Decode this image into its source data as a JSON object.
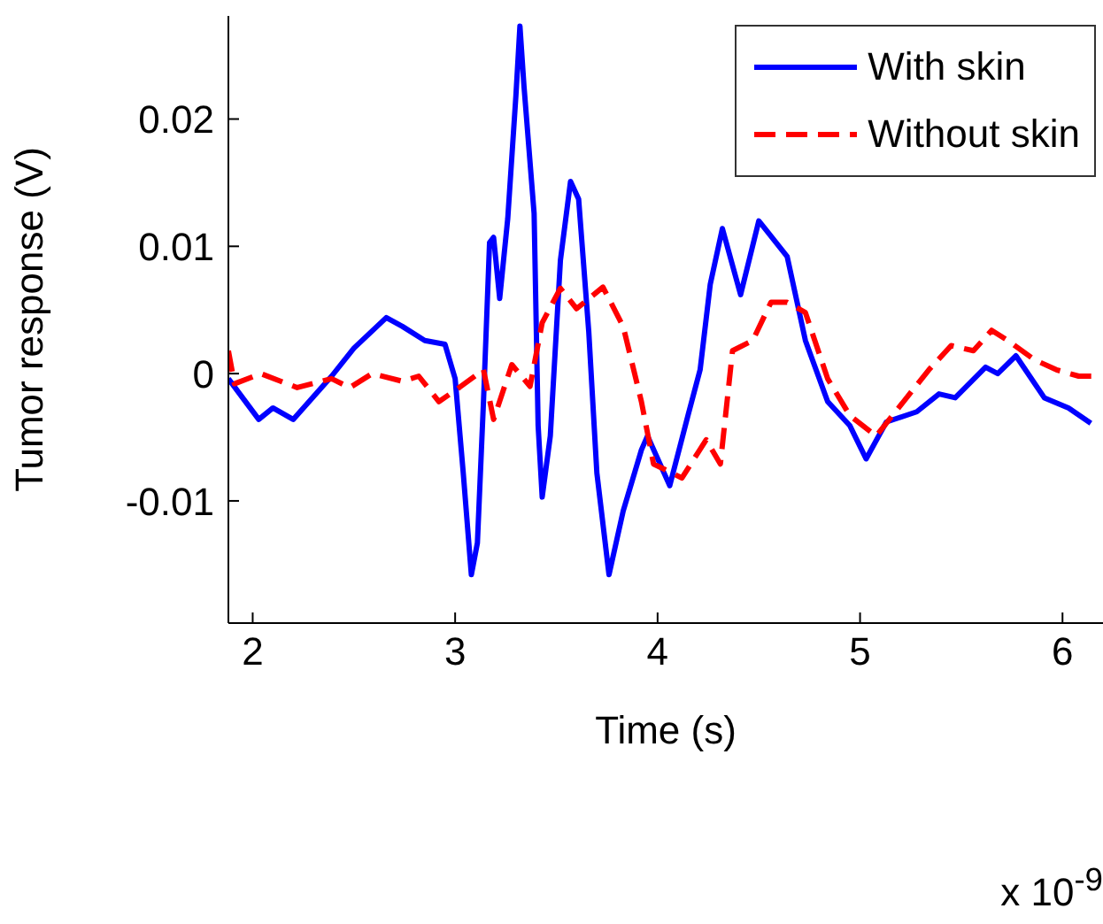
{
  "chart_data": {
    "type": "line",
    "xlabel": "Time (s)",
    "ylabel": "Tumor response (V)",
    "annotations": [
      "x 10$^{-9}$"
    ],
    "xlim": [
      1.88,
      6.2
    ],
    "xticks": [
      2,
      3,
      4,
      5,
      6
    ],
    "ylim": [
      -0.0196,
      0.0281
    ],
    "yticks": [
      -0.01,
      0,
      0.01,
      0.02
    ],
    "grid": false,
    "legend": "top right",
    "marker": "none",
    "series": [
      {
        "name": "With skin",
        "color": "#0000ff",
        "line_style": "solid",
        "x": [
          1.88,
          2.03,
          2.1,
          2.2,
          2.39,
          2.5,
          2.66,
          2.74,
          2.85,
          2.95,
          3.0,
          3.04,
          3.08,
          3.11,
          3.14,
          3.17,
          3.19,
          3.22,
          3.26,
          3.3,
          3.32,
          3.34,
          3.39,
          3.41,
          3.43,
          3.47,
          3.52,
          3.57,
          3.61,
          3.66,
          3.7,
          3.76,
          3.83,
          3.92,
          3.95,
          4.06,
          4.15,
          4.21,
          4.26,
          4.32,
          4.41,
          4.5,
          4.64,
          4.73,
          4.84,
          4.95,
          5.03,
          5.13,
          5.28,
          5.39,
          5.47,
          5.62,
          5.68,
          5.77,
          5.91,
          6.03,
          6.14
        ],
        "values": [
          -0.0004,
          -0.0036,
          -0.0027,
          -0.0036,
          -0.0002,
          0.002,
          0.0044,
          0.0037,
          0.0026,
          0.0023,
          -0.0004,
          -0.0078,
          -0.0158,
          -0.0133,
          -0.0022,
          0.0103,
          0.0107,
          0.0059,
          0.0122,
          0.0218,
          0.0273,
          0.0226,
          0.0126,
          -0.0041,
          -0.0097,
          -0.0049,
          0.0089,
          0.0151,
          0.0137,
          0.0033,
          -0.0078,
          -0.0158,
          -0.0108,
          -0.006,
          -0.0049,
          -0.0088,
          -0.0033,
          0.0003,
          0.007,
          0.0114,
          0.0062,
          0.012,
          0.0092,
          0.0026,
          -0.0022,
          -0.0041,
          -0.0067,
          -0.0038,
          -0.003,
          -0.0016,
          -0.0019,
          0.0005,
          0,
          0.0014,
          -0.0019,
          -0.0027,
          -0.0039
        ]
      },
      {
        "name": "Without skin",
        "color": "#ff0000",
        "line_style": "dashed",
        "x": [
          1.88,
          1.91,
          2.04,
          2.22,
          2.39,
          2.48,
          2.59,
          2.74,
          2.82,
          2.92,
          3.02,
          3.14,
          3.19,
          3.28,
          3.37,
          3.43,
          3.52,
          3.6,
          3.73,
          3.83,
          3.92,
          3.98,
          4.12,
          4.24,
          4.31,
          4.37,
          4.47,
          4.56,
          4.64,
          4.73,
          4.84,
          4.95,
          5.08,
          5.19,
          5.34,
          5.45,
          5.56,
          5.65,
          5.73,
          5.86,
          5.97,
          6.08,
          6.17
        ],
        "values": [
          0.0018,
          -0.0008,
          0,
          -0.0011,
          -0.0004,
          -0.0011,
          0,
          -0.0006,
          -0.0002,
          -0.0022,
          -0.0011,
          0.0003,
          -0.0036,
          0.0007,
          -0.001,
          0.004,
          0.0067,
          0.0051,
          0.0068,
          0.0037,
          -0.0022,
          -0.0071,
          -0.0082,
          -0.0052,
          -0.0071,
          0.0018,
          0.0026,
          0.0056,
          0.0056,
          0.0048,
          -0.0004,
          -0.0033,
          -0.0049,
          -0.0027,
          0.0003,
          0.0022,
          0.0018,
          0.0034,
          0.0026,
          0.0011,
          0.0003,
          -0.0002,
          -0.0002
        ]
      }
    ]
  }
}
